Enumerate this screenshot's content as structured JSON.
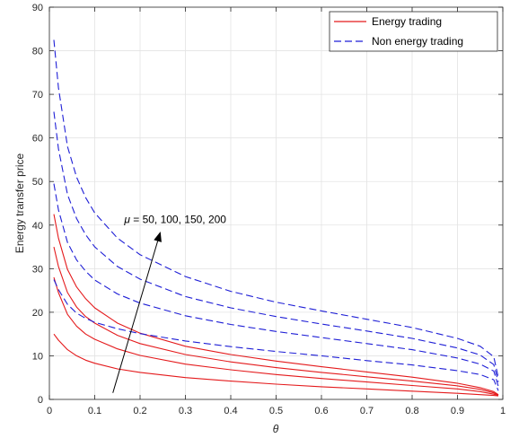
{
  "chart_data": {
    "type": "line",
    "xlabel": "θ",
    "ylabel": "Energy transfer price",
    "xlim": [
      0,
      1
    ],
    "ylim": [
      0,
      90
    ],
    "xticks": [
      0,
      0.1,
      0.2,
      0.3,
      0.4,
      0.5,
      0.6,
      0.7,
      0.8,
      0.9,
      1
    ],
    "xtick_labels": [
      "0",
      "0.1",
      "0.2",
      "0.3",
      "0.4",
      "0.5",
      "0.6",
      "0.7",
      "0.8",
      "0.9",
      "1"
    ],
    "yticks": [
      0,
      10,
      20,
      30,
      40,
      50,
      60,
      70,
      80,
      90
    ],
    "ytick_labels": [
      "0",
      "10",
      "20",
      "30",
      "40",
      "50",
      "60",
      "70",
      "80",
      "90"
    ],
    "grid": true,
    "legend_position": "top-right",
    "legend": [
      {
        "label": "Energy trading",
        "color": "#e41a1c",
        "dash": "solid"
      },
      {
        "label": "Non energy trading",
        "color": "#1f1fd6",
        "dash": "dashed"
      }
    ],
    "annotation": {
      "prefix": "μ",
      "text": " = 50, 100, 150, 200",
      "arrow_from": [
        0.14,
        1.5
      ],
      "arrow_to": [
        0.245,
        38.5
      ],
      "text_at": [
        0.165,
        40.5
      ]
    },
    "x": [
      0.01,
      0.02,
      0.04,
      0.06,
      0.08,
      0.1,
      0.15,
      0.2,
      0.3,
      0.4,
      0.5,
      0.6,
      0.7,
      0.8,
      0.9,
      0.95,
      0.98,
      0.99
    ],
    "series": [
      {
        "group": "Energy trading",
        "style": "solid",
        "color": "#e41a1c",
        "values": [
          15.0,
          13.6,
          11.4,
          10.0,
          9.0,
          8.3,
          7.0,
          6.2,
          5.0,
          4.2,
          3.5,
          2.9,
          2.4,
          1.9,
          1.4,
          1.1,
          0.9,
          0.8
        ]
      },
      {
        "group": "Energy trading",
        "style": "solid",
        "color": "#e41a1c",
        "values": [
          28.0,
          24.5,
          19.5,
          16.8,
          15.0,
          13.8,
          11.6,
          10.1,
          8.1,
          6.8,
          5.7,
          4.8,
          4.0,
          3.2,
          2.4,
          1.8,
          1.2,
          0.9
        ]
      },
      {
        "group": "Energy trading",
        "style": "solid",
        "color": "#e41a1c",
        "values": [
          35.0,
          30.5,
          24.5,
          21.2,
          19.0,
          17.5,
          14.7,
          12.8,
          10.3,
          8.6,
          7.3,
          6.2,
          5.2,
          4.2,
          3.1,
          2.3,
          1.5,
          1.0
        ]
      },
      {
        "group": "Energy trading",
        "style": "solid",
        "color": "#e41a1c",
        "values": [
          42.5,
          37.0,
          29.8,
          25.8,
          23.1,
          21.0,
          17.5,
          15.2,
          12.2,
          10.3,
          8.8,
          7.5,
          6.3,
          5.1,
          3.7,
          2.7,
          1.8,
          1.1
        ]
      },
      {
        "group": "Non energy trading",
        "style": "dashed",
        "color": "#1f1fd6",
        "values": [
          27.5,
          25.2,
          21.8,
          19.8,
          18.6,
          17.7,
          16.2,
          15.1,
          13.4,
          12.1,
          11.0,
          10.0,
          8.9,
          7.9,
          6.6,
          5.7,
          4.5,
          2.0
        ]
      },
      {
        "group": "Non energy trading",
        "style": "dashed",
        "color": "#1f1fd6",
        "values": [
          49.5,
          43.5,
          36.0,
          32.0,
          29.4,
          27.4,
          24.2,
          22.1,
          19.2,
          17.2,
          15.6,
          14.2,
          12.8,
          11.4,
          9.5,
          8.1,
          6.5,
          3.0
        ]
      },
      {
        "group": "Non energy trading",
        "style": "dashed",
        "color": "#1f1fd6",
        "values": [
          66.0,
          57.5,
          47.0,
          41.5,
          37.8,
          35.0,
          30.5,
          27.6,
          23.6,
          21.0,
          19.0,
          17.3,
          15.7,
          14.0,
          11.8,
          10.2,
          8.0,
          4.0
        ]
      },
      {
        "group": "Non energy trading",
        "style": "dashed",
        "color": "#1f1fd6",
        "values": [
          82.5,
          71.5,
          58.0,
          51.0,
          46.3,
          42.8,
          37.0,
          33.2,
          28.2,
          24.8,
          22.3,
          20.3,
          18.4,
          16.5,
          14.0,
          12.2,
          9.8,
          5.0
        ]
      }
    ]
  }
}
